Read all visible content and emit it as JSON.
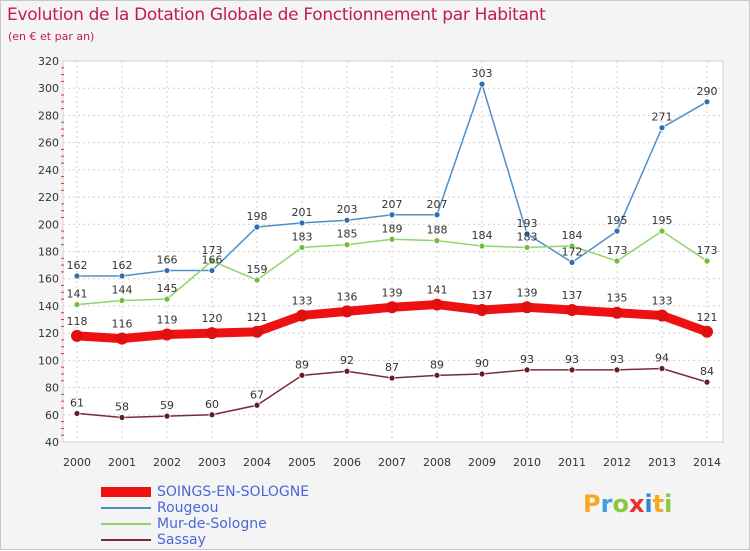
{
  "title": "Evolution de la Dotation Globale de Fonctionnement par Habitant",
  "subtitle": "(en € et par an)",
  "logo": {
    "letters": [
      "P",
      "r",
      "o",
      "x",
      "i",
      "t",
      "i"
    ],
    "colors": [
      "#f7a823",
      "#3aa0e0",
      "#8fc63f",
      "#e8312f",
      "#2f86d2",
      "#f7a823",
      "#8fc63f"
    ]
  },
  "chart_data": {
    "type": "line",
    "title": "Evolution de la Dotation Globale de Fonctionnement par Habitant",
    "subtitle": "(en € et par an)",
    "x": [
      2000,
      2001,
      2002,
      2003,
      2004,
      2005,
      2006,
      2007,
      2008,
      2009,
      2010,
      2011,
      2012,
      2013,
      2014
    ],
    "ylim": [
      40,
      320
    ],
    "yticks": [
      40,
      60,
      80,
      100,
      120,
      140,
      160,
      180,
      200,
      220,
      240,
      260,
      280,
      300,
      320
    ],
    "grid": true,
    "legend_position": "bottom-left",
    "series": [
      {
        "name": "Rougeou",
        "color": "#4f8fc8",
        "marker_color": "#2f6fae",
        "values": [
          162,
          162,
          166,
          166,
          198,
          201,
          203,
          207,
          207,
          303,
          193,
          172,
          195,
          271,
          290
        ],
        "labels": [
          "162",
          "162",
          "166",
          "166",
          "198",
          "201",
          "203",
          "207",
          "207",
          "303",
          "193",
          "172",
          "195",
          "271",
          "290"
        ]
      },
      {
        "name": "Mur-de-Sologne",
        "color": "#8fd36a",
        "marker_color": "#6fbd3f",
        "values": [
          141,
          144,
          145,
          173,
          159,
          183,
          185,
          189,
          188,
          184,
          183,
          184,
          173,
          195,
          173
        ],
        "labels": [
          "141",
          "144",
          "145",
          "173",
          "159",
          "183",
          "185",
          "189",
          "188",
          "184",
          "183",
          "184",
          "173",
          "195",
          "173"
        ]
      },
      {
        "name": "Sassay",
        "color": "#7a2a33",
        "marker_color": "#6a1a25",
        "values": [
          61,
          58,
          59,
          60,
          67,
          89,
          92,
          87,
          89,
          90,
          93,
          93,
          93,
          94,
          84
        ],
        "labels": [
          "61",
          "58",
          "59",
          "60",
          "67",
          "89",
          "92",
          "87",
          "89",
          "90",
          "93",
          "93",
          "93",
          "94",
          "84"
        ]
      },
      {
        "name": "SOINGS-EN-SOLOGNE",
        "color": "#ee1111",
        "marker_color": "#e01010",
        "values": [
          118,
          116,
          119,
          120,
          121,
          133,
          136,
          139,
          141,
          137,
          139,
          137,
          135,
          133,
          121
        ],
        "labels": [
          "118",
          "116",
          "119",
          "120",
          "121",
          "133",
          "136",
          "139",
          "141",
          "137",
          "139",
          "137",
          "135",
          "133",
          "121"
        ]
      }
    ],
    "legend": [
      "SOINGS-EN-SOLOGNE",
      "Rougeou",
      "Mur-de-Sologne",
      "Sassay"
    ]
  }
}
